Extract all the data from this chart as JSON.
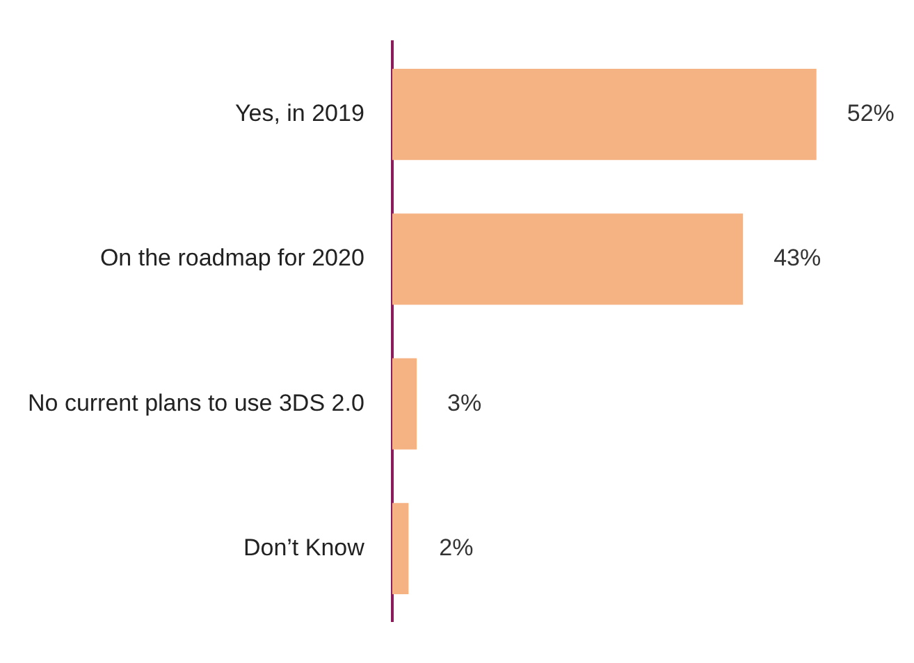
{
  "chart_data": {
    "type": "bar",
    "orientation": "horizontal",
    "categories": [
      "Yes, in 2019",
      "On the roadmap for 2020",
      "No current plans to use 3DS 2.0",
      "Don’t Know"
    ],
    "values": [
      52,
      43,
      3,
      2
    ],
    "value_labels": [
      "52%",
      "43%",
      "3%",
      "2%"
    ],
    "color": "#f5b283",
    "grid": false,
    "legend": false,
    "tick_labels": "y"
  }
}
